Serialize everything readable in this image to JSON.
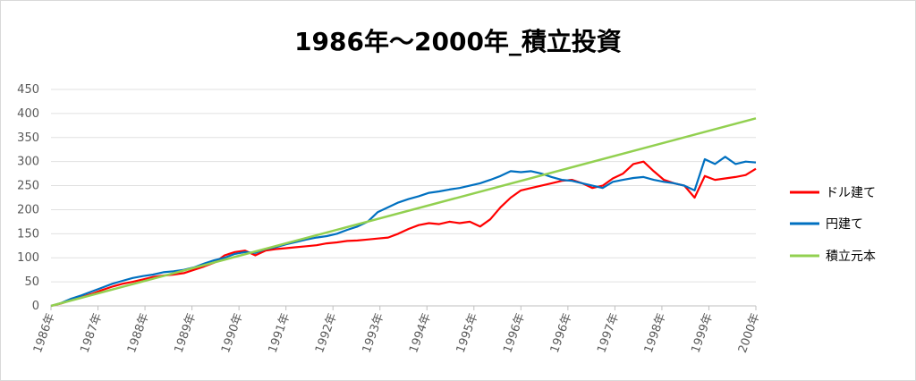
{
  "chart_data": {
    "type": "line",
    "title": "1986年～2000年_積立投資",
    "xlabel": "",
    "ylabel": "",
    "ylim": [
      0,
      450
    ],
    "yticks": [
      0,
      50,
      100,
      150,
      200,
      250,
      300,
      350,
      400,
      450
    ],
    "x_tick_labels": [
      "1986年",
      "1987年",
      "1988年",
      "1989年",
      "1990年",
      "1991年",
      "1992年",
      "1993年",
      "1994年",
      "1995年",
      "1996年",
      "1996年",
      "1997年",
      "1998年",
      "1999年",
      "2000年"
    ],
    "grid": true,
    "legend_position": "right",
    "series": [
      {
        "name": "ドル建て",
        "color": "#ff0000",
        "values": [
          0,
          5,
          12,
          18,
          25,
          33,
          40,
          46,
          50,
          55,
          60,
          63,
          65,
          68,
          75,
          82,
          90,
          105,
          112,
          115,
          105,
          115,
          118,
          120,
          122,
          124,
          126,
          130,
          132,
          135,
          136,
          138,
          140,
          142,
          150,
          160,
          168,
          172,
          170,
          175,
          172,
          175,
          165,
          180,
          205,
          225,
          240,
          245,
          250,
          255,
          260,
          262,
          255,
          245,
          250,
          265,
          275,
          295,
          300,
          280,
          262,
          255,
          250,
          225,
          270,
          262,
          265,
          268,
          272,
          285
        ]
      },
      {
        "name": "円建て",
        "color": "#0070c0",
        "values": [
          0,
          6,
          15,
          22,
          30,
          38,
          46,
          52,
          58,
          62,
          65,
          70,
          72,
          75,
          80,
          88,
          95,
          100,
          108,
          112,
          110,
          118,
          122,
          128,
          133,
          138,
          142,
          145,
          150,
          158,
          165,
          175,
          195,
          205,
          215,
          222,
          228,
          235,
          238,
          242,
          245,
          250,
          255,
          262,
          270,
          280,
          278,
          280,
          275,
          268,
          262,
          260,
          255,
          250,
          245,
          258,
          262,
          266,
          268,
          262,
          258,
          255,
          250,
          240,
          305,
          295,
          310,
          295,
          300,
          298
        ]
      },
      {
        "name": "積立元本",
        "color": "#92d050",
        "values": [
          0,
          390
        ]
      }
    ]
  }
}
